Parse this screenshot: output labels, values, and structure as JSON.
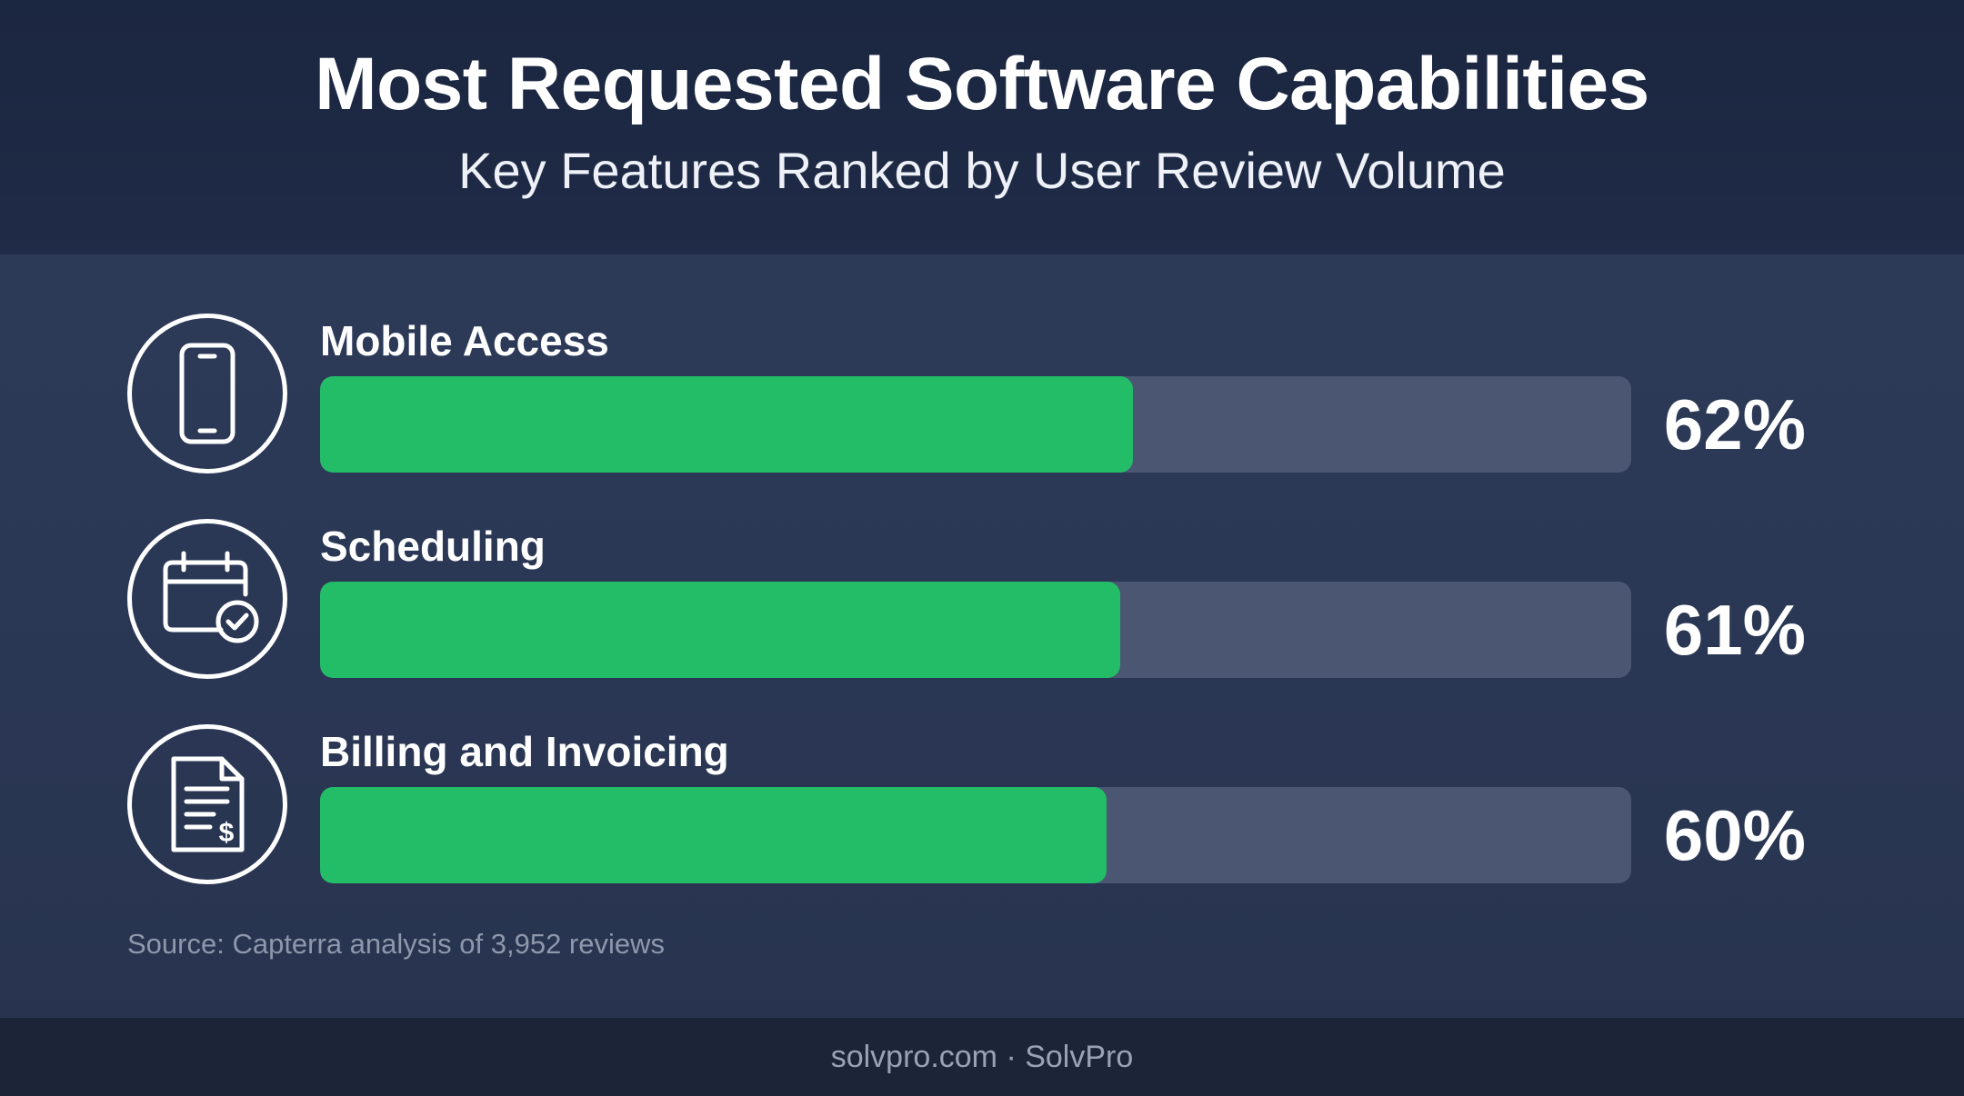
{
  "chart_data": {
    "type": "bar",
    "orientation": "horizontal",
    "title": "Most Requested Software Capabilities",
    "subtitle": "Key Features Ranked by User Review Volume",
    "categories": [
      "Mobile Access",
      "Scheduling",
      "Billing and Invoicing"
    ],
    "values": [
      62,
      61,
      60
    ],
    "value_labels": [
      "62%",
      "61%",
      "60%"
    ],
    "xlim": [
      0,
      100
    ],
    "unit": "%",
    "grid": false,
    "legend": "none",
    "icons": [
      "smartphone-icon",
      "calendar-check-icon",
      "invoice-dollar-icon"
    ],
    "colors": {
      "bar": "#23bd68",
      "track": "#4a5672"
    }
  },
  "source_note": "Source: Capterra analysis of 3,952 reviews",
  "footer": "solvpro.com · SolvPro"
}
